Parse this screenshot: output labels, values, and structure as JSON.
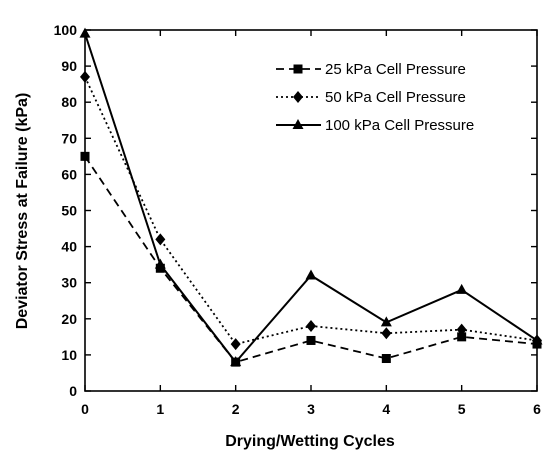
{
  "chart_data": {
    "type": "line",
    "xlabel": "Drying/Wetting Cycles",
    "ylabel": "Deviator Stress at Failure (kPa)",
    "xlim": [
      0,
      6
    ],
    "ylim": [
      0,
      100
    ],
    "x_ticks": [
      "0",
      "1",
      "2",
      "3",
      "4",
      "5",
      "6"
    ],
    "y_ticks": [
      "0",
      "10",
      "20",
      "30",
      "40",
      "50",
      "60",
      "70",
      "80",
      "90",
      "100"
    ],
    "grid": false,
    "legend_position": "top-right",
    "x": [
      0,
      1,
      2,
      3,
      4,
      5,
      6
    ],
    "series": [
      {
        "name": "25 kPa Cell Pressure",
        "values": [
          65,
          34,
          8,
          14,
          9,
          15,
          13
        ],
        "marker": "square",
        "line_style": "dashed",
        "color": "#000000"
      },
      {
        "name": "50 kPa Cell Pressure",
        "values": [
          87,
          42,
          13,
          18,
          16,
          17,
          14
        ],
        "marker": "diamond",
        "line_style": "dotted",
        "color": "#000000"
      },
      {
        "name": "100 kPa Cell Pressure",
        "values": [
          99,
          35,
          8,
          32,
          19,
          28,
          14
        ],
        "marker": "triangle",
        "line_style": "solid",
        "color": "#000000"
      }
    ]
  }
}
